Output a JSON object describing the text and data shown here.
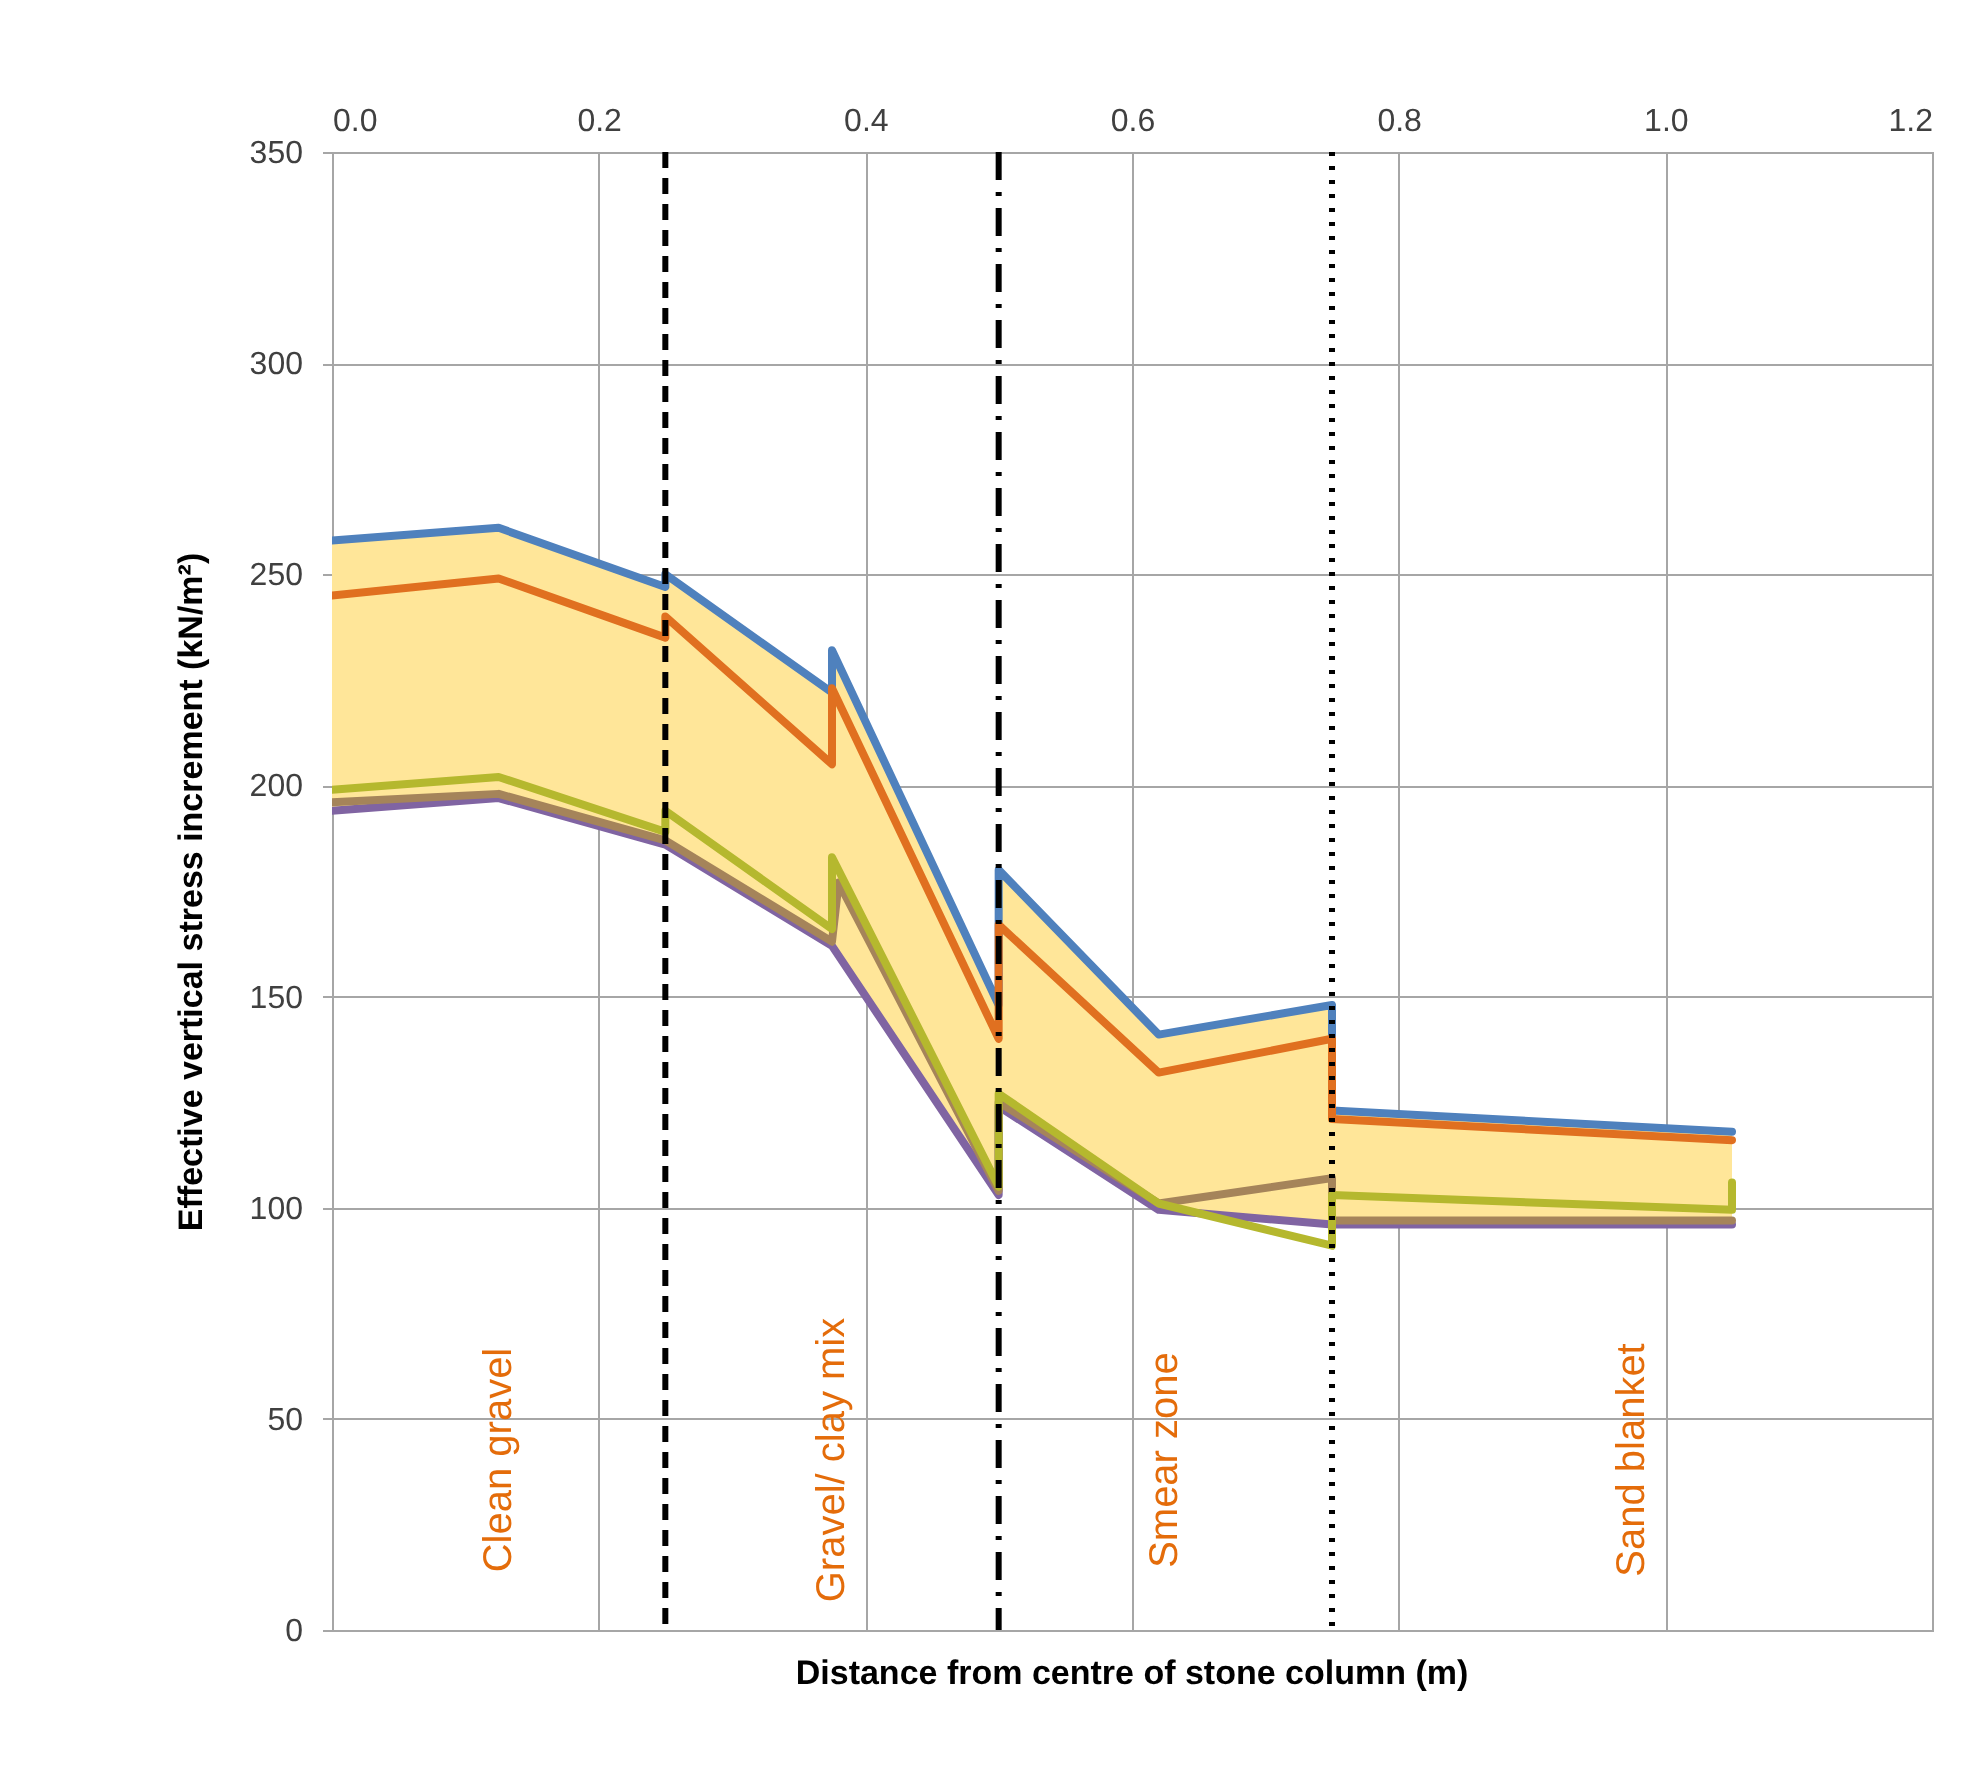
{
  "chart_data": {
    "type": "line",
    "xlabel": "Distance from centre of stone column (m)",
    "ylabel": "Effective vertical stress increment (kN/m²)",
    "xlim": [
      0,
      1.2
    ],
    "xticks": [
      {
        "value": 0,
        "label": "0.0"
      },
      {
        "value": 0.2,
        "label": "0.2"
      },
      {
        "value": 0.4,
        "label": "0.4"
      },
      {
        "value": 0.6,
        "label": "0.6"
      },
      {
        "value": 0.8,
        "label": "0.8"
      },
      {
        "value": 1.0,
        "label": "1.0"
      },
      {
        "value": 1.2,
        "label": "1.2"
      }
    ],
    "ylim": [
      0,
      350
    ],
    "yticks": [
      0,
      50,
      100,
      150,
      200,
      250,
      300,
      350
    ],
    "grid": true,
    "legend": false,
    "series": [
      {
        "color": "#4f81bd",
        "x": [
          0,
          0.125,
          0.25,
          0.25,
          0.375,
          0.375,
          0.5,
          0.5,
          0.62,
          0.75,
          0.75,
          1.05
        ],
        "values": [
          258,
          261,
          247,
          250,
          222,
          232,
          148,
          180,
          141,
          148,
          123,
          118
        ],
        "upper": [
          258,
          261,
          247,
          250,
          222,
          232,
          148,
          180,
          141,
          148,
          123,
          118
        ],
        "lower": [
          194,
          197,
          186,
          186,
          162,
          162,
          103,
          124,
          99.5,
          96,
          96,
          96
        ]
      },
      {
        "color": "#8064a2",
        "x": [
          0,
          0.125,
          0.25,
          0.375,
          0.5,
          0.5,
          0.62,
          0.75,
          1.05
        ],
        "values": [
          194,
          197,
          186,
          162,
          103,
          124,
          99.5,
          96,
          96
        ]
      },
      {
        "color": "#a5845a",
        "x": [
          0,
          0.125,
          0.25,
          0.375,
          0.38,
          0.5,
          0.5,
          0.62,
          0.75,
          0.75,
          1.05
        ],
        "values": [
          196,
          198,
          187,
          163,
          177,
          104,
          125,
          101,
          107,
          97,
          97
        ]
      },
      {
        "color": "#b5b82e",
        "x": [
          0,
          0.125,
          0.25,
          0.25,
          0.375,
          0.375,
          0.5,
          0.5,
          0.62,
          0.75,
          0.75,
          1.05,
          1.05
        ],
        "values": [
          199,
          202,
          189,
          194,
          166,
          183,
          105,
          127,
          101,
          91,
          103,
          99.5,
          106
        ]
      },
      {
        "color": "#e07020",
        "x": [
          0,
          0.125,
          0.25,
          0.25,
          0.375,
          0.375,
          0.5,
          0.5,
          0.62,
          0.75,
          0.75,
          1.05
        ],
        "values": [
          245,
          249,
          235,
          240,
          205,
          223,
          140,
          167,
          132,
          140,
          121,
          116
        ]
      }
    ],
    "ref_lines": [
      {
        "axis": "x",
        "value": 0.25,
        "color": "#000000",
        "line_style": "dashed"
      },
      {
        "axis": "x",
        "value": 0.5,
        "color": "#000000",
        "line_style": "dashdot"
      },
      {
        "axis": "x",
        "value": 0.75,
        "color": "#000000",
        "line_style": "dotted"
      }
    ],
    "annotations": [
      "Clean gravel",
      "Gravel/ clay mix",
      "Smear zone",
      "Sand blanket"
    ]
  }
}
